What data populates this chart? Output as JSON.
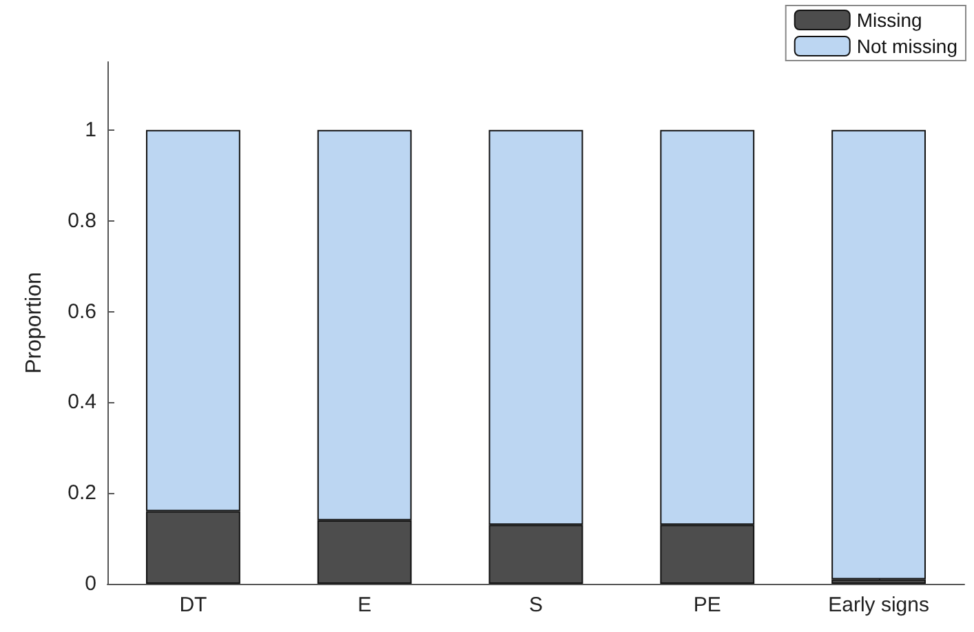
{
  "chart_data": {
    "type": "bar",
    "ylabel": "Proportion",
    "categories": [
      "DT",
      "E",
      "S",
      "PE",
      "Early signs"
    ],
    "stacked": true,
    "series": [
      {
        "name": "Missing",
        "color": "#4d4d4d",
        "values": [
          0.16,
          0.14,
          0.13,
          0.13,
          0.01
        ]
      },
      {
        "name": "Not missing",
        "color": "#bcd6f2",
        "values": [
          0.84,
          0.86,
          0.87,
          0.87,
          0.99
        ]
      }
    ],
    "ylim": [
      0,
      1.15
    ],
    "yticks": [
      0,
      0.2,
      0.4,
      0.6,
      0.8,
      1
    ],
    "grid": false,
    "legend": "top right"
  }
}
